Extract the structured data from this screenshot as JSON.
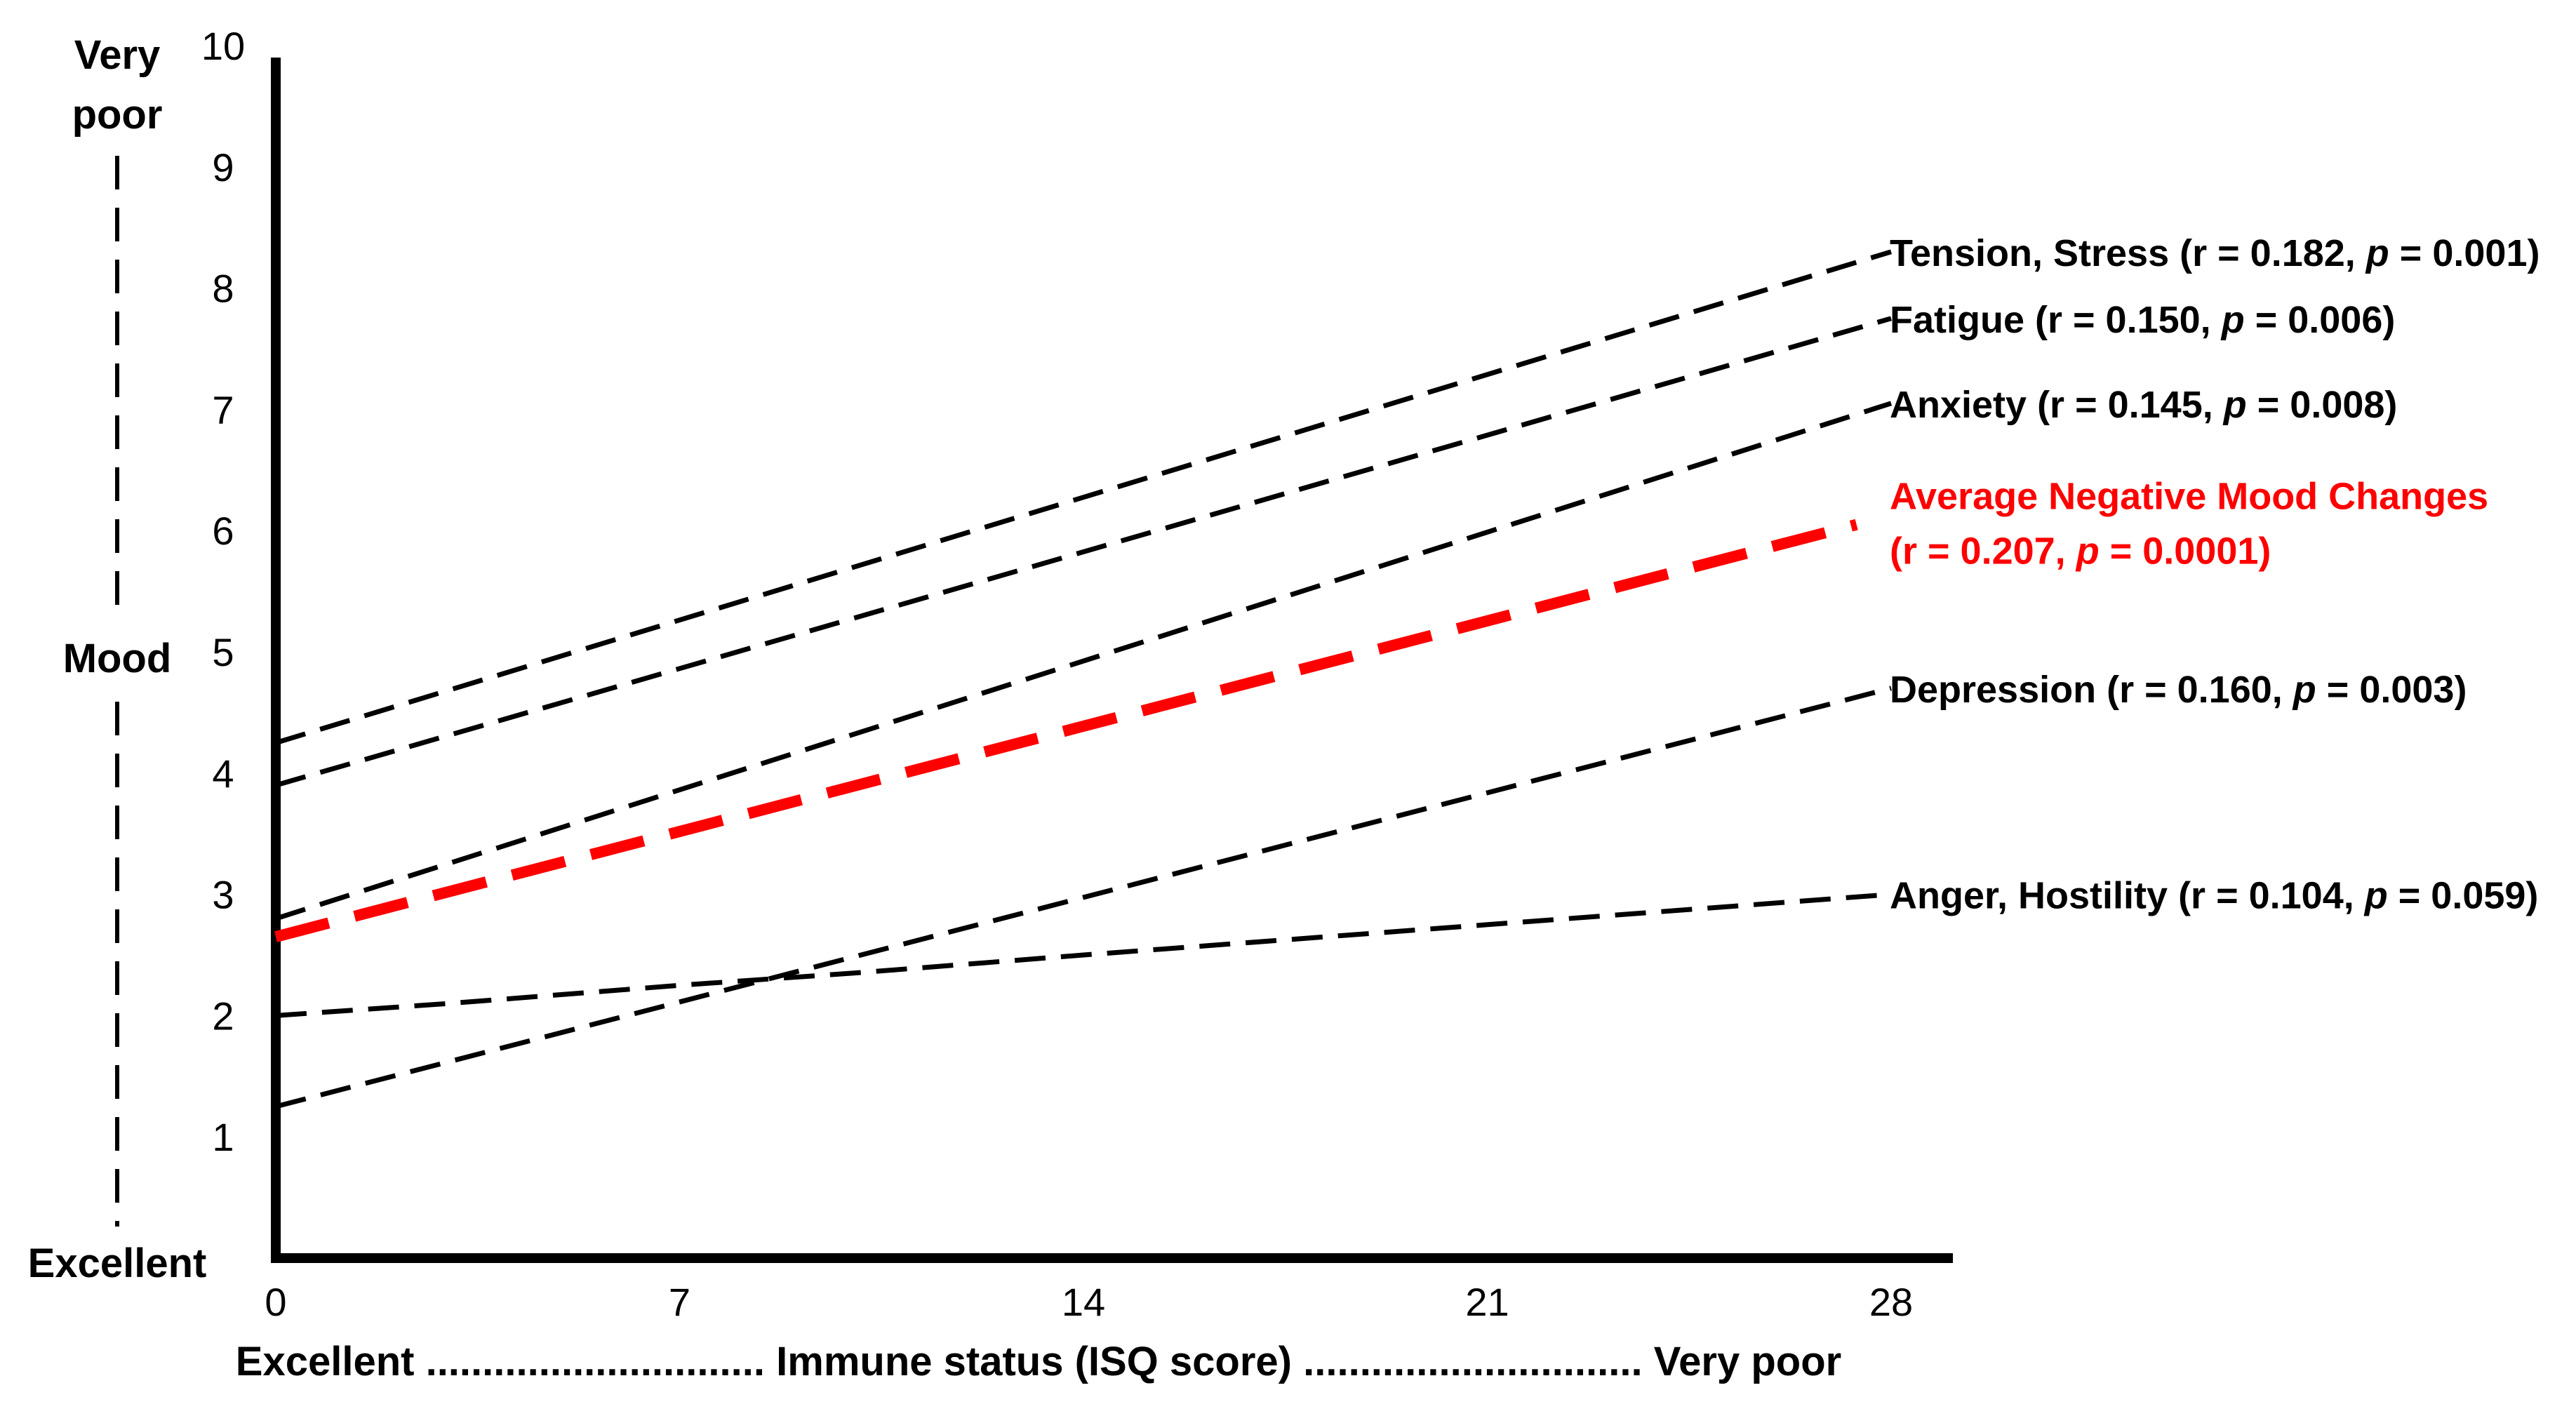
{
  "chart_data": {
    "type": "line",
    "xlim": [
      0,
      28
    ],
    "ylim": [
      0,
      10
    ],
    "x_ticks": [
      "0",
      "7",
      "14",
      "21",
      "28"
    ],
    "y_ticks": [
      "1",
      "2",
      "3",
      "4",
      "5",
      "6",
      "7",
      "8",
      "9",
      "10"
    ],
    "x_axis": {
      "left": "Excellent",
      "left_dots": "..............................",
      "title": "Immune status (ISQ score)",
      "right_dots": "..............................",
      "right": "Very poor"
    },
    "y_axis": {
      "top_line1": "Very",
      "top_line2": "poor",
      "title": "Mood",
      "bottom": "Excellent"
    },
    "series": [
      {
        "name": "Tension, Stress",
        "label_prefix": "Tension, Stress (r = 0.182, ",
        "p_symbol": "p",
        "label_suffix": " = 0.001)",
        "x": [
          0,
          28
        ],
        "y": [
          4.25,
          8.3
        ],
        "color": "#000000"
      },
      {
        "name": "Fatigue",
        "label_prefix": "Fatigue (r = 0.150, ",
        "p_symbol": "p",
        "label_suffix": " = 0.006)",
        "x": [
          0,
          28
        ],
        "y": [
          3.9,
          7.75
        ],
        "color": "#000000"
      },
      {
        "name": "Anxiety",
        "label_prefix": "Anxiety (r = 0.145, ",
        "p_symbol": "p",
        "label_suffix": " = 0.008)",
        "x": [
          0,
          28
        ],
        "y": [
          2.8,
          7.05
        ],
        "color": "#000000"
      },
      {
        "name": "Average Negative Mood Changes",
        "label_line1": "Average Negative Mood Changes",
        "label_prefix": "(r = 0.207, ",
        "p_symbol": "p",
        "label_suffix": " = 0.0001)",
        "x": [
          0,
          27.4
        ],
        "y": [
          2.65,
          6.05
        ],
        "color": "#ff0000"
      },
      {
        "name": "Depression",
        "label_prefix": "Depression (r = 0.160, ",
        "p_symbol": "p",
        "label_suffix": " = 0.003)",
        "x": [
          0,
          28
        ],
        "y": [
          1.25,
          4.7
        ],
        "color": "#000000"
      },
      {
        "name": "Anger, Hostility",
        "label_prefix": "Anger, Hostility (r = 0.104, ",
        "p_symbol": "p",
        "label_suffix": " = 0.059)",
        "x": [
          0,
          3,
          7,
          10,
          14,
          21,
          28
        ],
        "y": [
          2.0,
          2.1,
          2.25,
          2.35,
          2.5,
          2.75,
          3.0
        ],
        "color": "#000000"
      }
    ]
  }
}
